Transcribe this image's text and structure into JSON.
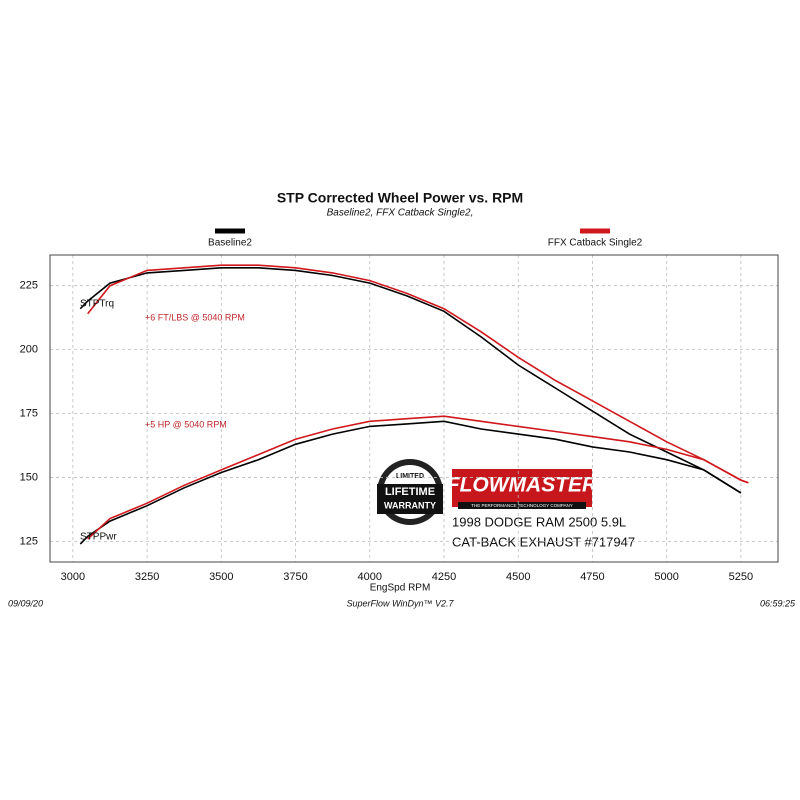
{
  "chart_data": {
    "type": "line",
    "title": "STP Corrected Wheel Power vs. RPM",
    "subtitle": "Baseline2, FFX Catback Single2,",
    "x_label": "EngSpd  RPM",
    "x": [
      3025,
      3050,
      3125,
      3250,
      3375,
      3500,
      3625,
      3750,
      3875,
      4000,
      4125,
      4250,
      4375,
      4500,
      4625,
      4750,
      4875,
      5000,
      5125,
      5250,
      5275
    ],
    "series": [
      {
        "name": "Baseline2",
        "color": "#000000",
        "values": [
          216,
          219,
          226,
          230,
          231,
          232,
          232,
          231,
          229,
          226,
          221,
          215,
          205,
          194,
          185,
          176,
          167,
          160,
          153,
          144,
          null
        ]
      },
      {
        "name": "FFX Catback Single2",
        "color": "#d0181c",
        "values": [
          null,
          214,
          225,
          231,
          232,
          233,
          233,
          232,
          230,
          227,
          222,
          216,
          207,
          197,
          188,
          180,
          172,
          164,
          157,
          149,
          148
        ]
      },
      {
        "name": "Baseline2",
        "color": "#000000",
        "values": [
          124,
          127,
          133,
          139,
          146,
          152,
          157,
          163,
          167,
          170,
          171,
          172,
          169,
          167,
          165,
          162,
          160,
          157,
          153,
          144,
          null
        ]
      },
      {
        "name": "FFX Catback Single2",
        "color": "#d0181c",
        "values": [
          null,
          126,
          134,
          140,
          147,
          153,
          159,
          165,
          169,
          172,
          173,
          174,
          172,
          170,
          168,
          166,
          164,
          161,
          157,
          149,
          148
        ]
      }
    ],
    "xlim": [
      2923,
      5375
    ],
    "ylim": [
      117,
      237
    ],
    "xticks": [
      3000,
      3250,
      3500,
      3750,
      4000,
      4250,
      4500,
      4750,
      5000,
      5250
    ],
    "yticks": [
      125,
      150,
      175,
      200,
      225
    ],
    "grid": true,
    "curve_labels": [
      "STPTrq",
      "STPPwr"
    ],
    "annotations": [
      "+6 FT/LBS @ 5040 RPM",
      "+5 HP @ 5040 RPM"
    ],
    "footer": [
      "09/09/20",
      "SuperFlow WinDyn™ V2.7",
      "06:59:25"
    ],
    "brand": {
      "name": "FLOWMASTER",
      "tagline": "THE PERFORMANCE TECHNOLOGY COMPANY",
      "badge": [
        "LIMITED",
        "LIFETIME",
        "WARRANTY"
      ]
    },
    "caption": [
      "1998 DODGE RAM 2500 5.9L",
      "CAT-BACK EXHAUST #717947"
    ]
  }
}
